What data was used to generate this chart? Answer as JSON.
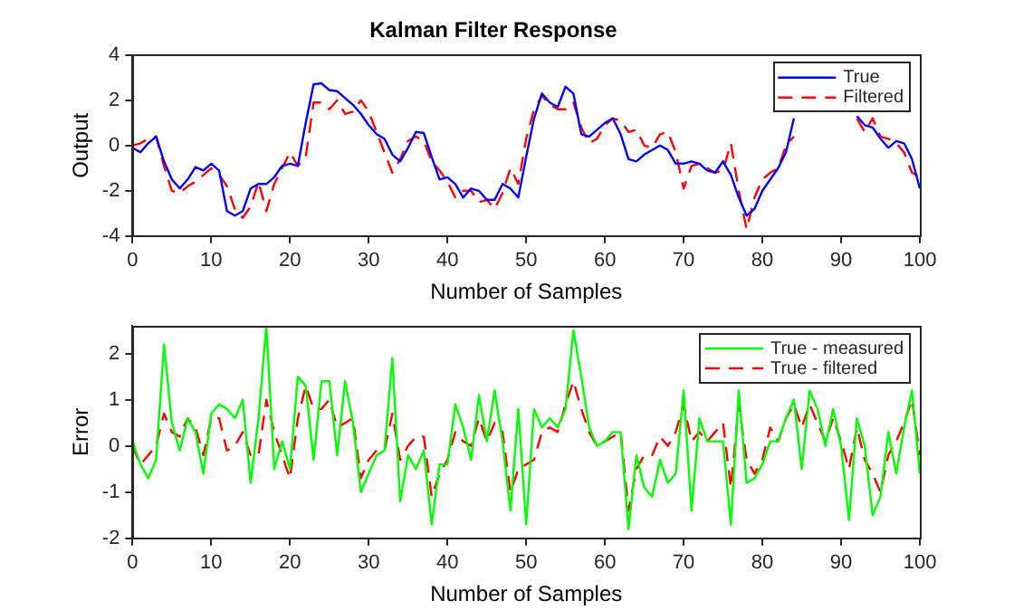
{
  "chart_data": [
    {
      "type": "line",
      "title": "Kalman Filter Response",
      "xlabel": "Number of Samples",
      "ylabel": "Output",
      "x": [
        0,
        1,
        2,
        3,
        4,
        5,
        6,
        7,
        8,
        9,
        10,
        11,
        12,
        13,
        14,
        15,
        16,
        17,
        18,
        19,
        20,
        21,
        22,
        23,
        24,
        25,
        26,
        27,
        28,
        29,
        30,
        31,
        32,
        33,
        34,
        35,
        36,
        37,
        38,
        39,
        40,
        41,
        42,
        43,
        44,
        45,
        46,
        47,
        48,
        49,
        50,
        51,
        52,
        53,
        54,
        55,
        56,
        57,
        58,
        59,
        60,
        61,
        62,
        63,
        64,
        65,
        66,
        67,
        68,
        69,
        70,
        71,
        72,
        73,
        74,
        75,
        76,
        77,
        78,
        79,
        80,
        81,
        82,
        83,
        84,
        85,
        86,
        87,
        88,
        89,
        90,
        91,
        92,
        93,
        94,
        95,
        96,
        97,
        98,
        99,
        100
      ],
      "xlim": [
        0,
        100
      ],
      "xticks": [
        0,
        10,
        20,
        30,
        40,
        50,
        60,
        70,
        80,
        90,
        100
      ],
      "ylim": [
        -4,
        4
      ],
      "yticks": [
        -4,
        -2,
        0,
        2,
        4
      ],
      "legend": "top right",
      "marker": "none",
      "series": [
        {
          "name": "True",
          "color": "#0000ff",
          "line_style": "solid",
          "values": [
            -0.1,
            -0.3,
            0.1,
            0.4,
            -0.7,
            -1.5,
            -1.9,
            -1.5,
            -0.95,
            -1.1,
            -0.8,
            -1.1,
            -2.9,
            -3.1,
            -2.9,
            -1.9,
            -1.7,
            -1.7,
            -1.4,
            -0.9,
            -0.8,
            -0.9,
            1.0,
            2.7,
            2.75,
            2.45,
            2.4,
            2.1,
            1.8,
            1.4,
            0.9,
            0.5,
            0.3,
            -0.4,
            -0.7,
            -0.1,
            0.6,
            0.55,
            -0.5,
            -1.5,
            -1.4,
            -1.7,
            -2.3,
            -1.9,
            -2.0,
            -2.4,
            -2.4,
            -1.7,
            -1.9,
            -2.3,
            -0.5,
            1.2,
            2.3,
            1.9,
            1.7,
            2.6,
            2.3,
            0.5,
            0.4,
            0.7,
            1.0,
            1.2,
            0.5,
            -0.6,
            -0.7,
            -0.4,
            -0.2,
            0.0,
            -0.2,
            -0.8,
            -0.8,
            -0.7,
            -0.8,
            -1.1,
            -1.2,
            -0.7,
            -1.3,
            -2.3,
            -3.1,
            -2.8,
            -2.0,
            -1.5,
            -1.0,
            -0.3,
            1.2,
            null,
            null,
            null,
            null,
            null,
            null,
            null,
            1.3,
            0.9,
            0.8,
            0.3,
            -0.1,
            0.2,
            0.1,
            -0.6,
            -1.9
          ]
        },
        {
          "name": "Filtered",
          "color": "#ff0000",
          "line_style": "dashed",
          "values": [
            0.0,
            0.1,
            0.3,
            0.4,
            -0.9,
            -2.0,
            -2.1,
            -1.8,
            -1.6,
            -1.3,
            -1.0,
            -1.3,
            -1.8,
            -2.8,
            -3.2,
            -2.7,
            -1.6,
            -2.9,
            -1.7,
            -1.0,
            -0.3,
            -0.9,
            -0.5,
            1.9,
            1.9,
            1.6,
            2.0,
            1.4,
            1.5,
            2.0,
            1.5,
            0.6,
            -0.3,
            -1.2,
            -0.6,
            0.2,
            0.4,
            0.2,
            -0.7,
            -1.1,
            -1.6,
            -2.3,
            -2.0,
            -2.0,
            -2.5,
            -2.4,
            -2.8,
            -2.1,
            -1.0,
            -1.7,
            0.3,
            1.6,
            2.2,
            1.8,
            1.6,
            1.6,
            1.9,
            0.8,
            0.1,
            0.3,
            0.9,
            1.2,
            1.1,
            0.6,
            0.7,
            0.0,
            -0.1,
            0.5,
            0.6,
            -0.3,
            -1.9,
            -0.9,
            -0.8,
            -1.0,
            -1.2,
            -1.1,
            0.1,
            -2.0,
            -3.7,
            -2.3,
            -1.5,
            -1.2,
            -1.0,
            0.0,
            0.4,
            null,
            null,
            null,
            null,
            null,
            null,
            null,
            1.2,
            0.6,
            1.2,
            0.4,
            0.3,
            0.1,
            -0.3,
            -1.2,
            -1.4
          ]
        }
      ]
    },
    {
      "type": "line",
      "xlabel": "Number of Samples",
      "ylabel": "Error",
      "x": [
        0,
        1,
        2,
        3,
        4,
        5,
        6,
        7,
        8,
        9,
        10,
        11,
        12,
        13,
        14,
        15,
        16,
        17,
        18,
        19,
        20,
        21,
        22,
        23,
        24,
        25,
        26,
        27,
        28,
        29,
        30,
        31,
        32,
        33,
        34,
        35,
        36,
        37,
        38,
        39,
        40,
        41,
        42,
        43,
        44,
        45,
        46,
        47,
        48,
        49,
        50,
        51,
        52,
        53,
        54,
        55,
        56,
        57,
        58,
        59,
        60,
        61,
        62,
        63,
        64,
        65,
        66,
        67,
        68,
        69,
        70,
        71,
        72,
        73,
        74,
        75,
        76,
        77,
        78,
        79,
        80,
        81,
        82,
        83,
        84,
        85,
        86,
        87,
        88,
        89,
        90,
        91,
        92,
        93,
        94,
        95,
        96,
        97,
        98,
        99,
        100
      ],
      "xlim": [
        0,
        100
      ],
      "xticks": [
        0,
        10,
        20,
        30,
        40,
        50,
        60,
        70,
        80,
        90,
        100
      ],
      "ylim": [
        -2,
        2.6
      ],
      "yticks": [
        -2,
        -1,
        0,
        1,
        2
      ],
      "legend": "top right",
      "marker": "none",
      "series": [
        {
          "name": "True - measured",
          "color": "#00ff00",
          "line_style": "solid",
          "values": [
            0.1,
            -0.4,
            -0.7,
            -0.3,
            2.2,
            0.5,
            -0.1,
            0.6,
            0.3,
            -0.6,
            0.7,
            0.9,
            0.8,
            0.6,
            1.0,
            -0.8,
            0.6,
            2.6,
            -0.5,
            0.1,
            -0.5,
            1.5,
            1.3,
            -0.3,
            1.4,
            1.4,
            -0.2,
            1.4,
            0.5,
            -1.0,
            -0.6,
            -0.2,
            -0.1,
            1.9,
            -1.2,
            -0.2,
            -0.5,
            -0.1,
            -1.7,
            -0.4,
            -0.4,
            0.9,
            0.4,
            -0.3,
            1.1,
            0.1,
            1.2,
            0.1,
            -1.4,
            0.8,
            -1.7,
            0.8,
            0.4,
            0.6,
            0.4,
            0.8,
            2.5,
            1.5,
            0.4,
            0.0,
            0.1,
            0.3,
            0.3,
            -1.8,
            -0.2,
            -0.9,
            -1.1,
            -0.3,
            -0.8,
            -0.6,
            1.2,
            -1.4,
            0.6,
            0.1,
            0.1,
            0.1,
            -1.7,
            1.2,
            -0.8,
            -0.7,
            -0.4,
            0.1,
            0.1,
            0.6,
            1.0,
            -0.5,
            1.2,
            0.8,
            0.0,
            0.8,
            0.0,
            -1.6,
            0.6,
            0.0,
            -1.5,
            -1.1,
            0.3,
            -0.6,
            0.4,
            1.2,
            -0.6
          ]
        },
        {
          "name": "True - filtered",
          "color": "#ff0000",
          "line_style": "dashed",
          "values": [
            0.0,
            -0.4,
            -0.2,
            0.0,
            0.7,
            0.3,
            0.2,
            0.6,
            0.4,
            -0.2,
            0.6,
            0.6,
            -0.1,
            0.0,
            0.3,
            -0.2,
            -0.2,
            1.0,
            0.3,
            -0.2,
            -0.7,
            0.6,
            1.3,
            0.8,
            0.8,
            1.0,
            0.4,
            0.5,
            0.6,
            -0.7,
            -0.3,
            -0.1,
            -0.1,
            0.7,
            -0.3,
            0.0,
            0.2,
            0.2,
            -1.1,
            -0.6,
            -0.3,
            0.3,
            0.1,
            0.0,
            0.6,
            0.1,
            0.5,
            0.3,
            -1.0,
            -0.5,
            -0.4,
            -0.3,
            0.3,
            0.4,
            0.3,
            0.9,
            1.4,
            0.8,
            0.3,
            0.0,
            0.1,
            0.2,
            0.3,
            -1.4,
            -0.5,
            -0.2,
            -0.2,
            0.2,
            0.0,
            0.3,
            0.9,
            0.1,
            0.3,
            0.1,
            0.3,
            0.5,
            -0.9,
            0.9,
            -0.3,
            -0.6,
            -0.3,
            0.4,
            0.1,
            0.6,
            0.9,
            0.4,
            0.9,
            0.5,
            0.1,
            0.6,
            0.1,
            -0.5,
            0.4,
            -0.3,
            -0.6,
            -1.0,
            -0.2,
            0.1,
            0.5,
            1.0,
            -0.2
          ]
        }
      ]
    }
  ]
}
